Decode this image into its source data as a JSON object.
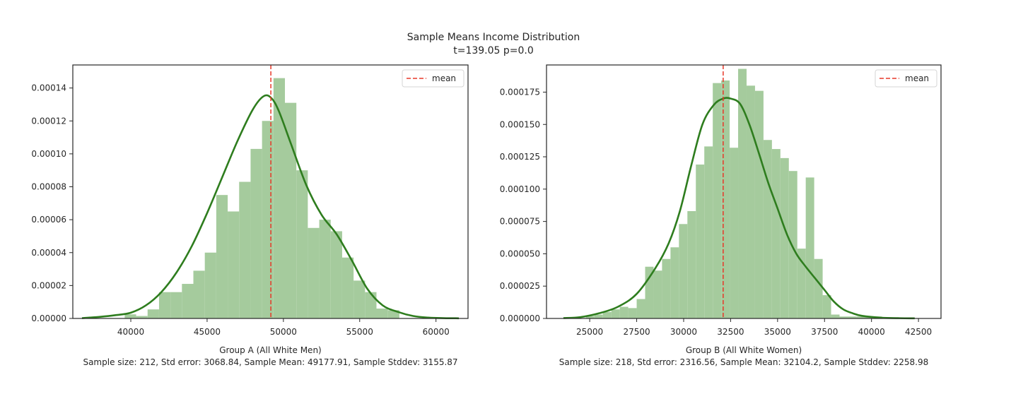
{
  "figure": {
    "suptitle_line1": "Sample Means Income Distribution",
    "suptitle_line2": "t=139.05 p=0.0"
  },
  "colors": {
    "bar": "#a5cb9d",
    "kde": "#2e7d1e",
    "mean_line": "#e8382a",
    "axis": "#262626"
  },
  "chart_data": [
    {
      "type": "bar",
      "subtype": "histogram_with_kde",
      "xlabel": "Group A (All White Men)",
      "xlabel_sub": "Sample size: 212, Std error: 3068.84, Sample Mean: 49177.91, Sample Stddev: 3155.87",
      "ylabel": "",
      "xlim": [
        36200,
        62100
      ],
      "ylim": [
        0,
        0.000154
      ],
      "x_ticks": [
        40000,
        45000,
        50000,
        55000,
        60000
      ],
      "x_tick_labels": [
        "40000",
        "45000",
        "50000",
        "55000",
        "60000"
      ],
      "y_ticks": [
        0,
        2e-05,
        4e-05,
        6e-05,
        8e-05,
        0.0001,
        0.00012,
        0.00014
      ],
      "y_tick_labels": [
        "0.00000",
        "0.00002",
        "0.00004",
        "0.00006",
        "0.00008",
        "0.00010",
        "0.00012",
        "0.00014"
      ],
      "grid": false,
      "legend": {
        "position": "top-right",
        "entries": [
          "mean"
        ]
      },
      "mean": 49177.91,
      "bins": {
        "edges": [
          39600,
          40350,
          41100,
          41850,
          42600,
          43350,
          44100,
          44850,
          45600,
          46350,
          47100,
          47850,
          48600,
          49350,
          50100,
          50850,
          51600,
          52350,
          53100,
          53850,
          54600,
          55350,
          56100,
          56850,
          57600
        ],
        "heights": [
          2.5e-06,
          1.5e-06,
          5.5e-06,
          1.6e-05,
          1.6e-05,
          2.1e-05,
          2.9e-05,
          4e-05,
          7.5e-05,
          6.5e-05,
          8.3e-05,
          0.000103,
          0.00012,
          0.000146,
          0.000131,
          9e-05,
          5.5e-05,
          6e-05,
          5.3e-05,
          3.7e-05,
          2.3e-05,
          1.6e-05,
          6e-06,
          5e-06,
          2.5e-06
        ]
      },
      "kde": {
        "x": [
          36800,
          38000,
          39000,
          40000,
          41000,
          42000,
          43000,
          44000,
          45000,
          46000,
          47000,
          48000,
          48700,
          49200,
          49700,
          50500,
          51500,
          52500,
          53500,
          54500,
          55500,
          56500,
          57500,
          58500,
          59500,
          60500,
          61500
        ],
        "y": [
          2e-07,
          1e-06,
          2e-06,
          3.5e-06,
          8e-06,
          1.6e-05,
          2.8e-05,
          4.4e-05,
          6.4e-05,
          8.6e-05,
          0.000108,
          0.000127,
          0.000135,
          0.000134,
          0.000126,
          0.000106,
          8.1e-05,
          6.3e-05,
          5.1e-05,
          3.5e-05,
          1.8e-05,
          8e-06,
          4e-06,
          1.5e-06,
          5e-07,
          2e-07,
          1e-07
        ]
      }
    },
    {
      "type": "bar",
      "subtype": "histogram_with_kde",
      "xlabel": "Group B (All White Women)",
      "xlabel_sub": "Sample size: 218, Std error: 2316.56, Sample Mean: 32104.2, Sample Stddev: 2258.98",
      "ylabel": "",
      "xlim": [
        22700,
        43700
      ],
      "ylim": [
        0,
        0.000196
      ],
      "x_ticks": [
        25000,
        27500,
        30000,
        32500,
        35000,
        37500,
        40000,
        42500
      ],
      "x_tick_labels": [
        "25000",
        "27500",
        "30000",
        "32500",
        "35000",
        "37500",
        "40000",
        "42500"
      ],
      "y_ticks": [
        0,
        2.5e-05,
        5e-05,
        7.5e-05,
        0.0001,
        0.000125,
        0.00015,
        0.000175
      ],
      "y_tick_labels": [
        "0.000000",
        "0.000025",
        "0.000050",
        "0.000075",
        "0.000100",
        "0.000125",
        "0.000150",
        "0.000175"
      ],
      "grid": false,
      "legend": {
        "position": "top-right",
        "entries": [
          "mean"
        ]
      },
      "mean": 32104.2,
      "bins": {
        "edges": [
          24800,
          25250,
          25700,
          26150,
          26600,
          27050,
          27500,
          27950,
          28400,
          28850,
          29300,
          29750,
          30200,
          30650,
          31100,
          31550,
          32000,
          32450,
          32900,
          33350,
          33800,
          34250,
          34700,
          35150,
          35600,
          36050,
          36500,
          36950,
          37400,
          37850,
          38300,
          38750,
          39200,
          39650,
          40100,
          40550
        ],
        "heights": [
          2e-06,
          3e-06,
          5e-06,
          7e-06,
          9e-06,
          8e-06,
          1.5e-05,
          4e-05,
          3.7e-05,
          4.6e-05,
          5.5e-05,
          7.3e-05,
          8.3e-05,
          0.000119,
          0.000133,
          0.000182,
          0.000184,
          0.000132,
          0.000193,
          0.00018,
          0.000176,
          0.000138,
          0.000131,
          0.000124,
          0.000114,
          5.4e-05,
          0.000109,
          4.6e-05,
          1.8e-05,
          3e-06,
          1.5e-06,
          1.5e-06,
          1.5e-06,
          1.5e-06,
          1.5e-06
        ]
      },
      "kde": {
        "x": [
          23600,
          24500,
          25500,
          26500,
          27500,
          28500,
          29200,
          29800,
          30400,
          31000,
          31600,
          32100,
          32500,
          33000,
          33500,
          34000,
          34500,
          35000,
          35500,
          36000,
          36500,
          37000,
          37500,
          38000,
          38500,
          39000,
          39500,
          40500,
          41500,
          42300
        ],
        "y": [
          3e-07,
          1e-06,
          4e-06,
          9e-06,
          1.9e-05,
          3.9e-05,
          5.8e-05,
          8.3e-05,
          0.000118,
          0.00015,
          0.000165,
          0.00017,
          0.00017,
          0.000166,
          0.00015,
          0.000128,
          0.000105,
          8.5e-05,
          6.5e-05,
          5e-05,
          4e-05,
          3.1e-05,
          2.2e-05,
          1.3e-05,
          7e-06,
          4e-06,
          2e-06,
          6e-07,
          2e-07,
          1e-07
        ]
      }
    }
  ]
}
